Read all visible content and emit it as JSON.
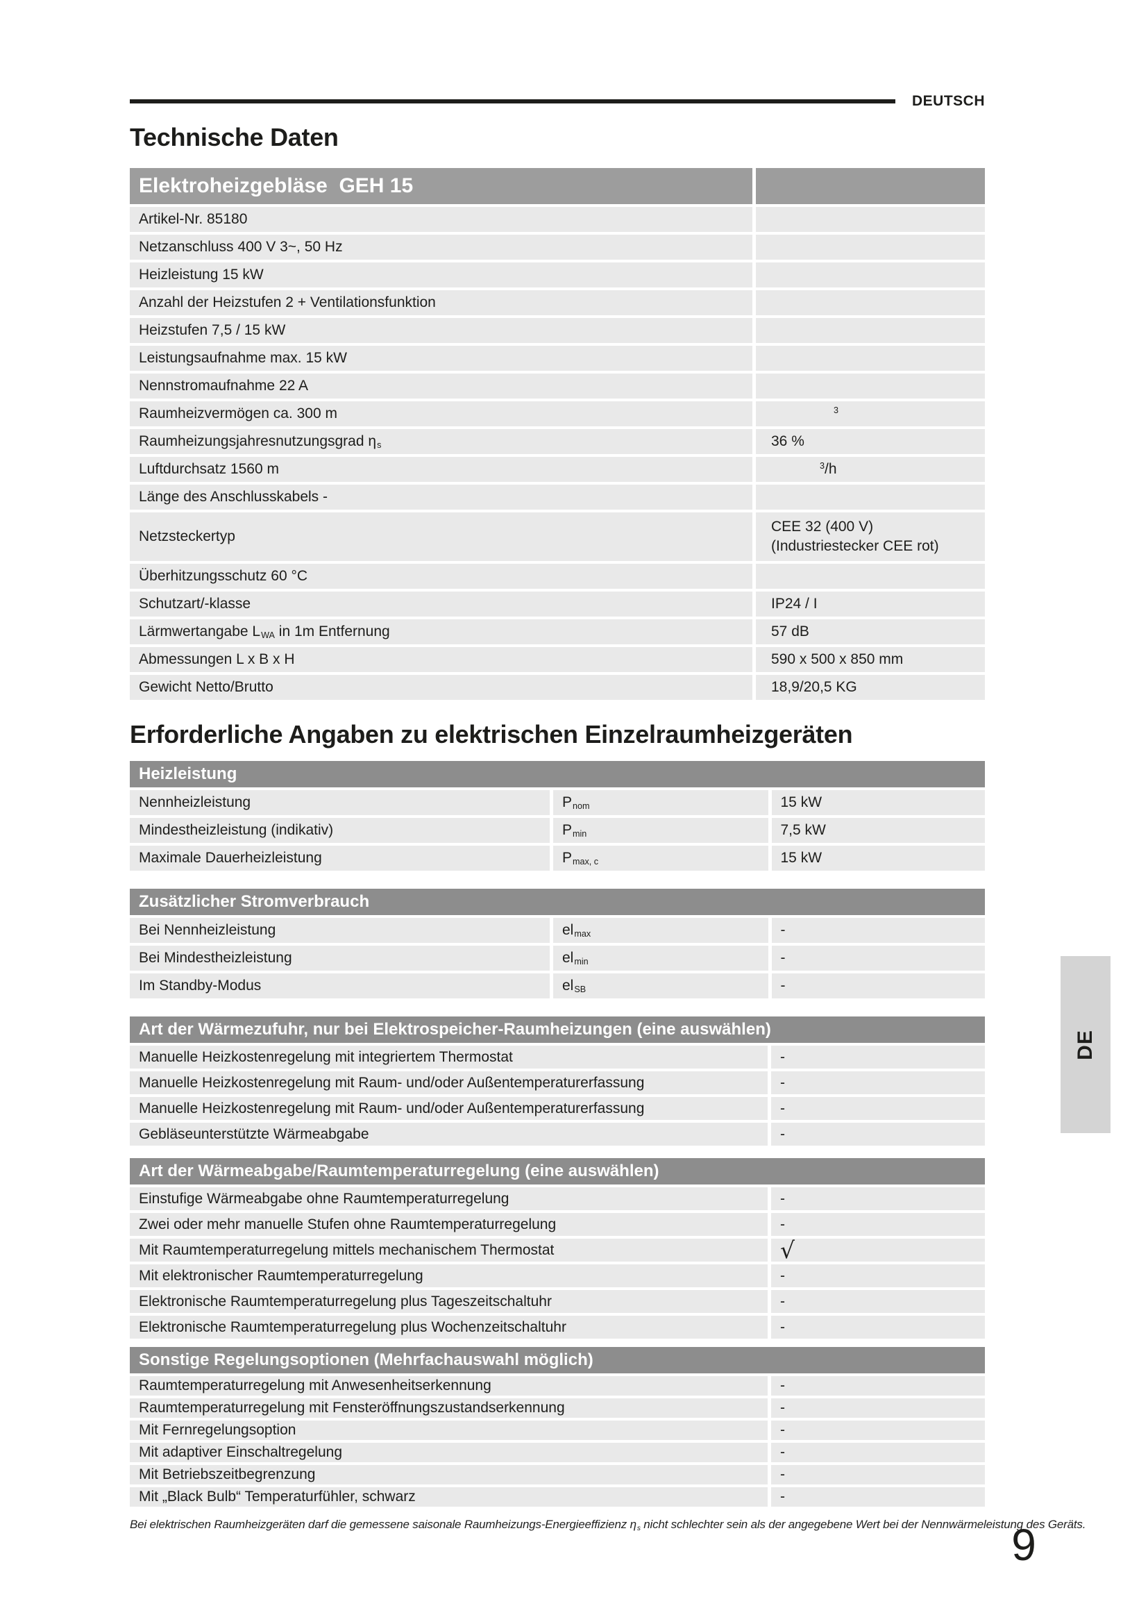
{
  "colors": {
    "bar_main": "#9d9d9d",
    "bar_section": "#8d8d8d",
    "row_background": "#e9e9e9",
    "side_tab_background": "#d4d4d4",
    "rule": "#1d1d1b"
  },
  "header": {
    "language_label": "DEUTSCH"
  },
  "page": {
    "title_tech": "Technische Daten",
    "title_required": "Erforderliche Angaben zu elektrischen Einzelraumheizgeräten",
    "page_number": "9",
    "side_tab_label": "DE",
    "footnote_pre": "Bei elektrischen Raumheizgeräten darf die gemessene saisonale Raumheizungs-Energieeffizienz η",
    "footnote_sub": "s",
    "footnote_post": " nicht schlechter sein als der angegebene Wert bei der Nennwärmeleistung des Geräts."
  },
  "tech_table": {
    "header": "Elektroheizgebläse  GEH 15",
    "rows": [
      {
        "label": "Artikel-Nr. 85180",
        "value": ""
      },
      {
        "label": "Netzanschluss 400 V 3~, 50 Hz",
        "value": ""
      },
      {
        "label": "Heizleistung 15 kW",
        "value": ""
      },
      {
        "label": "Anzahl der Heizstufen 2 + Ventilationsfunktion",
        "value": ""
      },
      {
        "label": "Heizstufen 7,5 / 15 kW",
        "value": ""
      },
      {
        "label": "Leistungsaufnahme max. 15 kW",
        "value": ""
      },
      {
        "label": "Nennstromaufnahme 22 A",
        "value": ""
      },
      {
        "label": "Raumheizvermögen ca. 300 m",
        "value_sup": "3",
        "value": "",
        "value_indent": 112
      },
      {
        "label": "Raumheizungsjahresnutzungsgrad η",
        "label_sub": "s",
        "value": "36 %"
      },
      {
        "label": "Luftdurchsatz 1560 m",
        "value_sup": "3",
        "value": "/h",
        "value_indent": 92
      },
      {
        "label": "Länge des Anschlusskabels -",
        "value": ""
      },
      {
        "label": "Netzsteckertyp",
        "value": "CEE 32 (400 V)",
        "value_line2": "(Industriestecker CEE rot)"
      },
      {
        "label": "Überhitzungsschutz 60 °C",
        "value": ""
      },
      {
        "label": "Schutzart/-klasse",
        "value": "IP24 / I"
      },
      {
        "label": "Lärmwertangabe L",
        "label_sub": "WA",
        "label_tail": " in 1m Entfernung",
        "value": "57 dB"
      },
      {
        "label": "Abmessungen L x B x H",
        "value": "590 x 500 x 850 mm"
      },
      {
        "label": "Gewicht Netto/Brutto",
        "value": "18,9/20,5 KG"
      }
    ]
  },
  "sec_heizleistung": {
    "header": "Heizleistung",
    "rows": [
      {
        "label": "Nennheizleistung",
        "sym": "P",
        "sym_sub": "nom",
        "value": "15 kW"
      },
      {
        "label": "Mindestheizleistung (indikativ)",
        "sym": "P",
        "sym_sub": "min",
        "value": "7,5 kW"
      },
      {
        "label": "Maximale Dauerheizleistung",
        "sym": "P",
        "sym_sub": "max, c",
        "value": "15 kW"
      }
    ]
  },
  "sec_stromverbrauch": {
    "header": "Zusätzlicher Stromverbrauch",
    "rows": [
      {
        "label": "Bei Nennheizleistung",
        "sym": "el",
        "sym_sub": "max",
        "value": "-"
      },
      {
        "label": "Bei Mindestheizleistung",
        "sym": "el",
        "sym_sub": "min",
        "value": "-"
      },
      {
        "label": "Im Standby-Modus",
        "sym": "el",
        "sym_sub": "SB",
        "value": "-"
      }
    ]
  },
  "sec_waermezufuhr": {
    "header": "Art der Wärmezufuhr, nur bei Elektrospeicher-Raumheizungen (eine auswählen)",
    "rows": [
      {
        "label": "Manuelle Heizkostenregelung mit integriertem Thermostat",
        "value": "-"
      },
      {
        "label": "Manuelle Heizkostenregelung mit Raum- und/oder Außentemperaturerfassung",
        "value": "-"
      },
      {
        "label": "Manuelle Heizkostenregelung mit Raum- und/oder Außentemperaturerfassung",
        "value": "-"
      },
      {
        "label": "Gebläseunterstützte Wärmeabgabe",
        "value": "-"
      }
    ]
  },
  "sec_waermeabgabe": {
    "header": "Art der Wärmeabgabe/Raumtemperaturregelung (eine auswählen)",
    "rows": [
      {
        "label": "Einstufige Wärmeabgabe ohne Raumtemperaturregelung",
        "value": "-"
      },
      {
        "label": "Zwei oder mehr manuelle Stufen ohne Raumtemperaturregelung",
        "value": "-"
      },
      {
        "label": "Mit Raumtemperaturregelung mittels mechanischem Thermostat",
        "check": "√"
      },
      {
        "label": "Mit elektronischer Raumtemperaturregelung",
        "value": "-"
      },
      {
        "label": "Elektronische Raumtemperaturregelung plus Tageszeitschaltuhr",
        "value": "-"
      },
      {
        "label": "Elektronische Raumtemperaturregelung plus Wochenzeitschaltuhr",
        "value": "-"
      }
    ]
  },
  "sec_sonstige": {
    "header": "Sonstige Regelungsoptionen (Mehrfachauswahl möglich)",
    "rows": [
      {
        "label": "Raumtemperaturregelung mit Anwesenheitserkennung",
        "value": "-"
      },
      {
        "label": "Raumtemperaturregelung mit Fensteröffnungszustandserkennung",
        "value": "-"
      },
      {
        "label": "Mit Fernregelungsoption",
        "value": "-"
      },
      {
        "label": "Mit adaptiver Einschaltregelung",
        "value": "-"
      },
      {
        "label": "Mit Betriebszeitbegrenzung",
        "value": "-"
      },
      {
        "label": "Mit „Black Bulb“ Temperaturfühler, schwarz",
        "value": "-"
      }
    ]
  }
}
